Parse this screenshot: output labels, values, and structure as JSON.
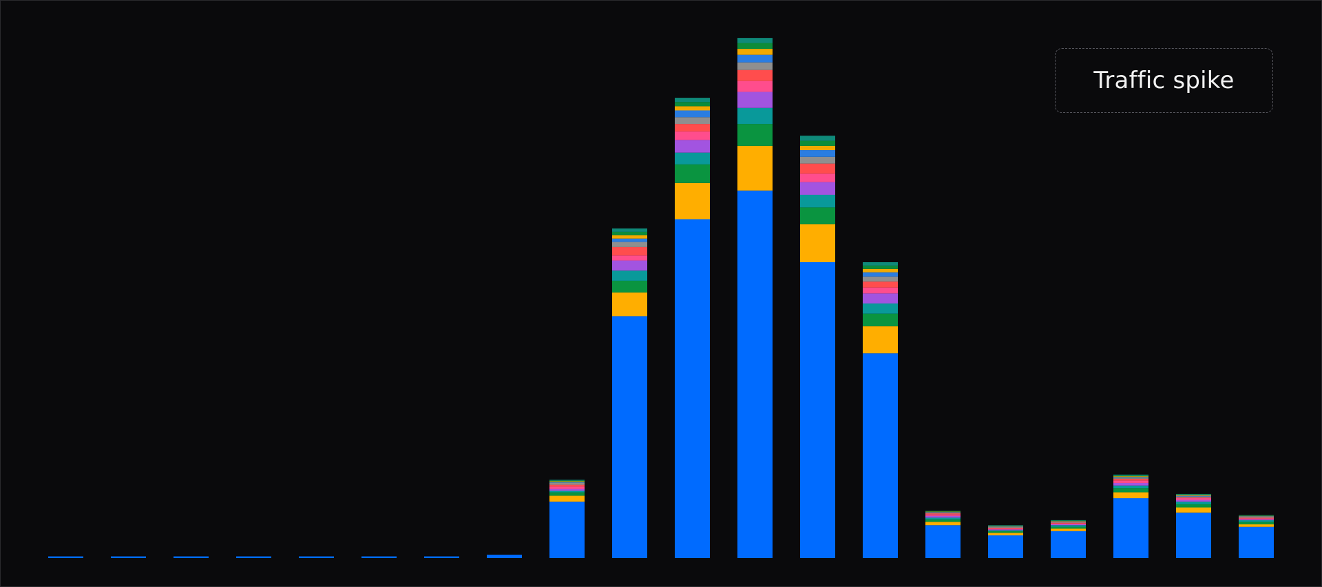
{
  "chart_data": {
    "type": "stacked-bar",
    "annotation": "Traffic spike",
    "ylim": [
      0,
      662
    ],
    "series": [
      {
        "color": "#006bff",
        "values": [
          2,
          2,
          2,
          2,
          2,
          2,
          2,
          4,
          67,
          287,
          402,
          436,
          351,
          243,
          39,
          27,
          32,
          71,
          54,
          37
        ]
      },
      {
        "color": "#ffae00",
        "values": [
          0,
          0,
          0,
          0,
          0,
          0,
          0,
          0,
          7,
          28,
          43,
          53,
          45,
          32,
          4,
          3,
          3,
          7,
          6,
          3
        ]
      },
      {
        "color": "#0a9440",
        "values": [
          0,
          0,
          0,
          0,
          0,
          0,
          0,
          0,
          4,
          14,
          22,
          26,
          20,
          15,
          3,
          2,
          2,
          5,
          4,
          3
        ]
      },
      {
        "color": "#09999a",
        "values": [
          0,
          0,
          0,
          0,
          0,
          0,
          0,
          0,
          2,
          12,
          14,
          19,
          15,
          12,
          2,
          1,
          2,
          3,
          3,
          2
        ]
      },
      {
        "color": "#a254e0",
        "values": [
          0,
          0,
          0,
          0,
          0,
          0,
          0,
          0,
          2,
          12,
          15,
          19,
          15,
          12,
          2,
          1,
          1,
          3,
          2,
          1
        ]
      },
      {
        "color": "#ff4d8d",
        "values": [
          0,
          0,
          0,
          0,
          0,
          0,
          0,
          0,
          3,
          6,
          10,
          13,
          10,
          7,
          2,
          1,
          1,
          3,
          2,
          1
        ]
      },
      {
        "color": "#ff4d4d",
        "values": [
          0,
          0,
          0,
          0,
          0,
          0,
          0,
          0,
          2,
          10,
          9,
          13,
          12,
          7,
          1,
          1,
          1,
          2,
          1,
          1
        ]
      },
      {
        "color": "#8f8f8f",
        "values": [
          0,
          0,
          0,
          0,
          0,
          0,
          0,
          0,
          2,
          6,
          8,
          9,
          8,
          6,
          1,
          1,
          1,
          1,
          1,
          1
        ]
      },
      {
        "color": "#2a7de1",
        "values": [
          0,
          0,
          0,
          0,
          0,
          0,
          0,
          0,
          1,
          4,
          8,
          9,
          8,
          5,
          0.5,
          0.5,
          0.5,
          1,
          1,
          0.5
        ]
      },
      {
        "color": "#f2a900",
        "values": [
          0,
          0,
          0,
          0,
          0,
          0,
          0,
          0,
          1,
          4,
          5,
          7,
          5,
          4,
          0.5,
          0.5,
          0.5,
          1,
          1,
          0.5
        ]
      },
      {
        "color": "#0d8c3a",
        "values": [
          0,
          0,
          0,
          0,
          0,
          0,
          0,
          0,
          1,
          4,
          5,
          7,
          6,
          4,
          0.5,
          0.5,
          0.5,
          1,
          0.5,
          0.5
        ]
      },
      {
        "color": "#0f8a7a",
        "values": [
          0,
          0,
          0,
          0,
          0,
          0,
          0,
          0,
          1,
          4,
          5,
          6,
          6,
          4,
          0.5,
          0.5,
          0.5,
          1,
          0.5,
          0.5
        ]
      }
    ]
  }
}
